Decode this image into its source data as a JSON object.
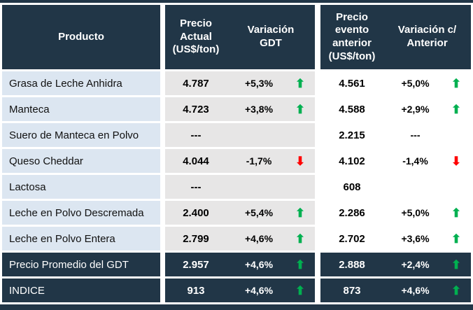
{
  "colors": {
    "header_bg": "#213647",
    "dark_row_bg": "#213647",
    "product_column_bg": "#DCE6F1",
    "middle_columns_bg": "#E7E6E6",
    "right_columns_bg": "#FFFFFF",
    "up_arrow": "#00B050",
    "down_arrow": "#FF0000"
  },
  "chart_data": {
    "type": "table",
    "columns": [
      "Producto",
      "Precio Actual (US$/ton)",
      "Variación GDT",
      "Precio evento anterior (US$/ton)",
      "Variación c/ Anterior"
    ],
    "rows": [
      {
        "product": "Grasa de Leche Anhidra",
        "current_price": "4.787",
        "gdt_variation": "+5,3%",
        "gdt_trend": "up",
        "previous_price": "4.561",
        "previous_variation": "+5,0%",
        "previous_trend": "up",
        "row_style": "normal"
      },
      {
        "product": "Manteca",
        "current_price": "4.723",
        "gdt_variation": "+3,8%",
        "gdt_trend": "up",
        "previous_price": "4.588",
        "previous_variation": "+2,9%",
        "previous_trend": "up",
        "row_style": "normal"
      },
      {
        "product": "Suero de Manteca en Polvo",
        "current_price": "---",
        "gdt_variation": "",
        "gdt_trend": "none",
        "previous_price": "2.215",
        "previous_variation": "---",
        "previous_trend": "none",
        "row_style": "normal"
      },
      {
        "product": "Queso Cheddar",
        "current_price": "4.044",
        "gdt_variation": "-1,7%",
        "gdt_trend": "down",
        "previous_price": "4.102",
        "previous_variation": "-1,4%",
        "previous_trend": "down",
        "row_style": "normal"
      },
      {
        "product": "Lactosa",
        "current_price": "---",
        "gdt_variation": "",
        "gdt_trend": "none",
        "previous_price": "608",
        "previous_variation": "",
        "previous_trend": "none",
        "row_style": "normal"
      },
      {
        "product": "Leche en Polvo Descremada",
        "current_price": "2.400",
        "gdt_variation": "+5,4%",
        "gdt_trend": "up",
        "previous_price": "2.286",
        "previous_variation": "+5,0%",
        "previous_trend": "up",
        "row_style": "normal"
      },
      {
        "product": "Leche en Polvo Entera",
        "current_price": "2.799",
        "gdt_variation": "+4,6%",
        "gdt_trend": "up",
        "previous_price": "2.702",
        "previous_variation": "+3,6%",
        "previous_trend": "up",
        "row_style": "normal"
      },
      {
        "product": "Precio Promedio del GDT",
        "current_price": "2.957",
        "gdt_variation": "+4,6%",
        "gdt_trend": "up",
        "previous_price": "2.888",
        "previous_variation": "+2,4%",
        "previous_trend": "up",
        "row_style": "dark"
      },
      {
        "product": "INDICE",
        "current_price": "913",
        "gdt_variation": "+4,6%",
        "gdt_trend": "up",
        "previous_price": "873",
        "previous_variation": "+4,6%",
        "previous_trend": "up",
        "row_style": "dark"
      }
    ]
  }
}
